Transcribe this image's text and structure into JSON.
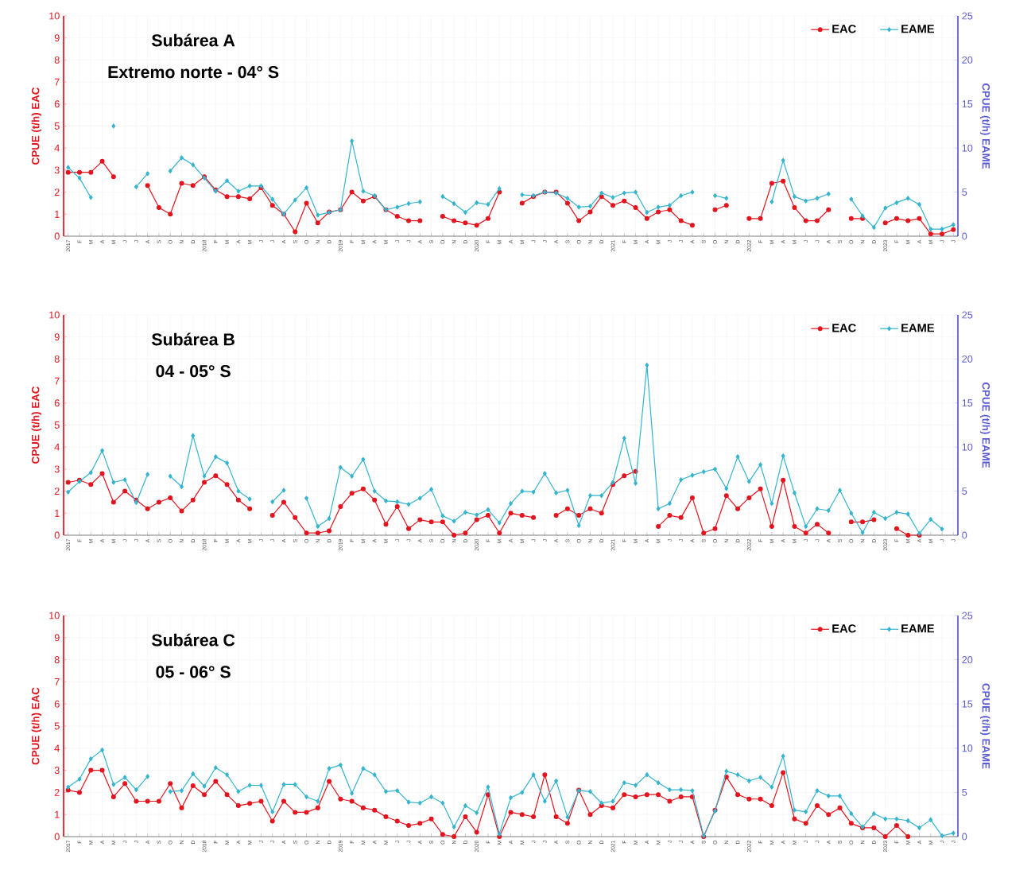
{
  "chart_data": [
    {
      "type": "line",
      "title": "Subárea A",
      "subtitle": "Extremo norte - 04° S",
      "ylabel": "CPUE (t/h) EAC",
      "y2label": "CPUE (t/h) EAME",
      "categories": [
        "2017",
        "F",
        "M",
        "A",
        "M",
        "J",
        "J",
        "A",
        "S",
        "O",
        "N",
        "D",
        "2018",
        "F",
        "M",
        "A",
        "M",
        "J",
        "J",
        "A",
        "S",
        "O",
        "N",
        "D",
        "2019",
        "F",
        "M",
        "A",
        "M",
        "J",
        "J",
        "A",
        "S",
        "O",
        "N",
        "D",
        "2020",
        "F",
        "M",
        "A",
        "M",
        "J",
        "J",
        "A",
        "S",
        "O",
        "N",
        "D",
        "2021",
        "F",
        "M",
        "A",
        "M",
        "J",
        "J",
        "A",
        "S",
        "O",
        "N",
        "D",
        "2022",
        "F",
        "M",
        "A",
        "M",
        "J",
        "J",
        "A",
        "S",
        "O",
        "N",
        "D",
        "2023",
        "F",
        "M",
        "A",
        "M",
        "J",
        "J"
      ],
      "series": [
        {
          "name": "EAC",
          "color": "#e3141e",
          "marker": "circle",
          "values": [
            2.9,
            2.9,
            2.9,
            3.4,
            2.7,
            null,
            null,
            2.3,
            1.3,
            1.0,
            2.4,
            2.3,
            2.7,
            2.1,
            1.8,
            1.8,
            1.7,
            2.2,
            1.4,
            1.0,
            0.2,
            1.5,
            0.6,
            1.1,
            1.2,
            2.0,
            1.6,
            1.8,
            1.2,
            0.9,
            0.7,
            0.7,
            null,
            0.9,
            0.7,
            0.6,
            0.5,
            0.8,
            2.0,
            null,
            1.5,
            1.8,
            2.0,
            2.0,
            1.5,
            0.7,
            1.1,
            1.8,
            1.4,
            1.6,
            1.3,
            0.8,
            1.1,
            1.2,
            0.7,
            0.5,
            null,
            1.2,
            1.4,
            null,
            0.8,
            0.8,
            2.4,
            2.5,
            1.3,
            0.7,
            0.7,
            1.2,
            null,
            0.8,
            0.8,
            null,
            0.6,
            0.8,
            0.7,
            0.8,
            0.1,
            0.1,
            0.3
          ]
        },
        {
          "name": "EAME",
          "color": "#34b4cf",
          "marker": "diamond",
          "axis": "y2",
          "values": [
            7.8,
            6.6,
            4.4,
            null,
            12.5,
            null,
            5.6,
            7.1,
            null,
            7.4,
            8.9,
            8.1,
            6.6,
            5.1,
            6.3,
            5.1,
            5.7,
            5.7,
            4.2,
            2.5,
            4.1,
            5.5,
            2.4,
            2.7,
            3.0,
            10.8,
            5.1,
            4.6,
            3.0,
            3.3,
            3.7,
            3.9,
            null,
            4.5,
            3.7,
            2.7,
            3.8,
            3.6,
            5.4,
            null,
            4.7,
            4.6,
            5.0,
            4.9,
            4.3,
            3.3,
            3.4,
            4.9,
            4.4,
            4.9,
            5.0,
            2.7,
            3.3,
            3.5,
            4.6,
            5.0,
            null,
            4.6,
            4.3,
            null,
            null,
            null,
            3.9,
            8.6,
            4.5,
            4.0,
            4.3,
            4.8,
            null,
            4.2,
            2.3,
            1.0,
            3.2,
            3.8,
            4.3,
            3.6,
            0.8,
            0.8,
            1.3
          ]
        }
      ],
      "ylim": [
        0,
        10
      ],
      "yticks": [
        0,
        1,
        2,
        3,
        4,
        5,
        6,
        7,
        8,
        9,
        10
      ],
      "y2lim": [
        0,
        25
      ],
      "y2ticks": [
        0,
        5,
        10,
        15,
        20,
        25
      ],
      "grid": true,
      "legend": "top right"
    },
    {
      "type": "line",
      "title": "Subárea B",
      "subtitle": "04 - 05° S",
      "ylabel": "CPUE (t/h) EAC",
      "y2label": "CPUE (t/h) EAME",
      "categories": [
        "2017",
        "F",
        "M",
        "A",
        "M",
        "J",
        "J",
        "A",
        "S",
        "O",
        "N",
        "D",
        "2018",
        "F",
        "M",
        "A",
        "M",
        "J",
        "J",
        "A",
        "S",
        "O",
        "N",
        "D",
        "2019",
        "F",
        "M",
        "A",
        "M",
        "J",
        "J",
        "A",
        "S",
        "O",
        "N",
        "D",
        "2020",
        "F",
        "M",
        "A",
        "M",
        "J",
        "J",
        "A",
        "S",
        "O",
        "N",
        "D",
        "2021",
        "F",
        "M",
        "A",
        "M",
        "J",
        "J",
        "A",
        "S",
        "O",
        "N",
        "D",
        "2022",
        "F",
        "M",
        "A",
        "M",
        "J",
        "J",
        "A",
        "S",
        "O",
        "N",
        "D",
        "2023",
        "F",
        "M",
        "A",
        "M",
        "J",
        "J"
      ],
      "series": [
        {
          "name": "EAC",
          "color": "#e3141e",
          "marker": "circle",
          "values": [
            2.4,
            2.5,
            2.3,
            2.8,
            1.5,
            2.0,
            1.6,
            1.2,
            1.5,
            1.7,
            1.1,
            1.6,
            2.4,
            2.7,
            2.3,
            1.6,
            1.2,
            null,
            0.9,
            1.5,
            0.8,
            0.1,
            0.1,
            0.2,
            1.3,
            1.9,
            2.1,
            1.6,
            0.5,
            1.3,
            0.3,
            0.7,
            0.6,
            0.6,
            0.0,
            0.1,
            0.7,
            0.9,
            0.1,
            1.0,
            0.9,
            0.8,
            null,
            0.9,
            1.2,
            0.9,
            1.2,
            1.0,
            2.3,
            2.7,
            2.9,
            null,
            0.4,
            0.9,
            0.8,
            1.7,
            0.1,
            0.3,
            1.8,
            1.2,
            1.7,
            2.1,
            0.4,
            2.5,
            0.4,
            0.1,
            0.5,
            0.1,
            null,
            0.6,
            0.6,
            0.7,
            null,
            0.3,
            0.0,
            0.0,
            null,
            null,
            null
          ]
        },
        {
          "name": "EAME",
          "color": "#34b4cf",
          "marker": "diamond",
          "axis": "y2",
          "values": [
            4.9,
            6.1,
            7.1,
            9.6,
            6.0,
            6.3,
            3.7,
            6.9,
            null,
            6.7,
            5.5,
            11.3,
            6.7,
            8.9,
            8.2,
            5.0,
            4.1,
            null,
            3.8,
            5.1,
            null,
            4.2,
            1.0,
            1.9,
            7.7,
            6.7,
            8.6,
            5.0,
            3.9,
            3.8,
            3.5,
            4.2,
            5.2,
            2.2,
            1.6,
            2.6,
            2.3,
            2.9,
            1.4,
            3.6,
            5.0,
            4.9,
            7.0,
            4.8,
            5.1,
            1.1,
            4.5,
            4.5,
            6.0,
            11.0,
            5.9,
            19.3,
            3.0,
            3.6,
            6.3,
            6.8,
            7.2,
            7.5,
            5.3,
            8.9,
            6.1,
            8.0,
            3.6,
            9.0,
            4.8,
            1.0,
            3.0,
            2.8,
            5.1,
            2.5,
            0.3,
            2.6,
            1.9,
            2.6,
            2.4,
            0.2,
            1.8,
            0.7,
            null
          ]
        }
      ],
      "ylim": [
        0,
        10
      ],
      "yticks": [
        0,
        1,
        2,
        3,
        4,
        5,
        6,
        7,
        8,
        9,
        10
      ],
      "y2lim": [
        0,
        25
      ],
      "y2ticks": [
        0,
        5,
        10,
        15,
        20,
        25
      ],
      "grid": true,
      "legend": "top right"
    },
    {
      "type": "line",
      "title": "Subárea C",
      "subtitle": "05 - 06° S",
      "ylabel": "CPUE (t/h) EAC",
      "y2label": "CPUE (t/h) EAME",
      "categories": [
        "2017",
        "F",
        "M",
        "A",
        "M",
        "J",
        "J",
        "A",
        "S",
        "O",
        "N",
        "D",
        "2018",
        "F",
        "M",
        "A",
        "M",
        "J",
        "J",
        "A",
        "S",
        "O",
        "N",
        "D",
        "2019",
        "F",
        "M",
        "A",
        "M",
        "J",
        "J",
        "A",
        "S",
        "O",
        "N",
        "D",
        "2020",
        "F",
        "M",
        "A",
        "M",
        "J",
        "J",
        "A",
        "S",
        "O",
        "N",
        "D",
        "2021",
        "F",
        "M",
        "A",
        "M",
        "J",
        "J",
        "A",
        "S",
        "O",
        "N",
        "D",
        "2022",
        "F",
        "M",
        "A",
        "M",
        "J",
        "J",
        "A",
        "S",
        "O",
        "N",
        "D",
        "2023",
        "F",
        "M",
        "A",
        "M",
        "J",
        "J"
      ],
      "series": [
        {
          "name": "EAC",
          "color": "#e3141e",
          "marker": "circle",
          "values": [
            2.1,
            2.0,
            3.0,
            3.0,
            1.8,
            2.4,
            1.6,
            1.6,
            1.6,
            2.4,
            1.3,
            2.3,
            1.9,
            2.5,
            1.9,
            1.4,
            1.5,
            1.6,
            0.7,
            1.6,
            1.1,
            1.1,
            1.3,
            2.5,
            1.7,
            1.6,
            1.3,
            1.2,
            0.9,
            0.7,
            0.5,
            0.6,
            0.8,
            0.1,
            0.0,
            0.9,
            0.2,
            1.9,
            0.0,
            1.1,
            1.0,
            0.9,
            2.8,
            0.9,
            0.6,
            2.1,
            1.0,
            1.4,
            1.3,
            1.9,
            1.8,
            1.9,
            1.9,
            1.6,
            1.8,
            1.8,
            0.0,
            1.2,
            2.7,
            1.9,
            1.7,
            1.7,
            1.4,
            2.9,
            0.8,
            0.6,
            1.4,
            1.0,
            1.3,
            0.6,
            0.4,
            0.4,
            0.0,
            0.5,
            0.0,
            null,
            null,
            null,
            null
          ]
        },
        {
          "name": "EAME",
          "color": "#34b4cf",
          "marker": "diamond",
          "axis": "y2",
          "values": [
            5.6,
            6.5,
            8.8,
            9.8,
            5.9,
            6.7,
            5.3,
            6.8,
            null,
            5.1,
            5.2,
            7.1,
            5.7,
            7.8,
            7.0,
            5.1,
            5.8,
            5.8,
            2.8,
            5.9,
            5.9,
            4.5,
            4.0,
            7.7,
            8.1,
            4.9,
            7.7,
            7.0,
            5.1,
            5.2,
            3.9,
            3.8,
            4.5,
            3.8,
            1.1,
            3.5,
            2.7,
            5.6,
            0.3,
            4.4,
            5.0,
            7.0,
            4.0,
            6.3,
            2.2,
            5.2,
            5.1,
            3.8,
            4.0,
            6.1,
            5.8,
            7.0,
            6.1,
            5.3,
            5.3,
            5.2,
            0.1,
            2.9,
            7.4,
            7.0,
            6.3,
            6.7,
            5.6,
            9.1,
            3.0,
            2.8,
            5.2,
            4.6,
            4.6,
            2.6,
            1.1,
            2.6,
            2.0,
            2.0,
            1.8,
            1.0,
            1.9,
            0.1,
            0.4
          ]
        }
      ],
      "ylim": [
        0,
        10
      ],
      "yticks": [
        0,
        1,
        2,
        3,
        4,
        5,
        6,
        7,
        8,
        9,
        10
      ],
      "y2lim": [
        0,
        25
      ],
      "y2ticks": [
        0,
        5,
        10,
        15,
        20,
        25
      ],
      "grid": true,
      "legend": "top right"
    }
  ]
}
